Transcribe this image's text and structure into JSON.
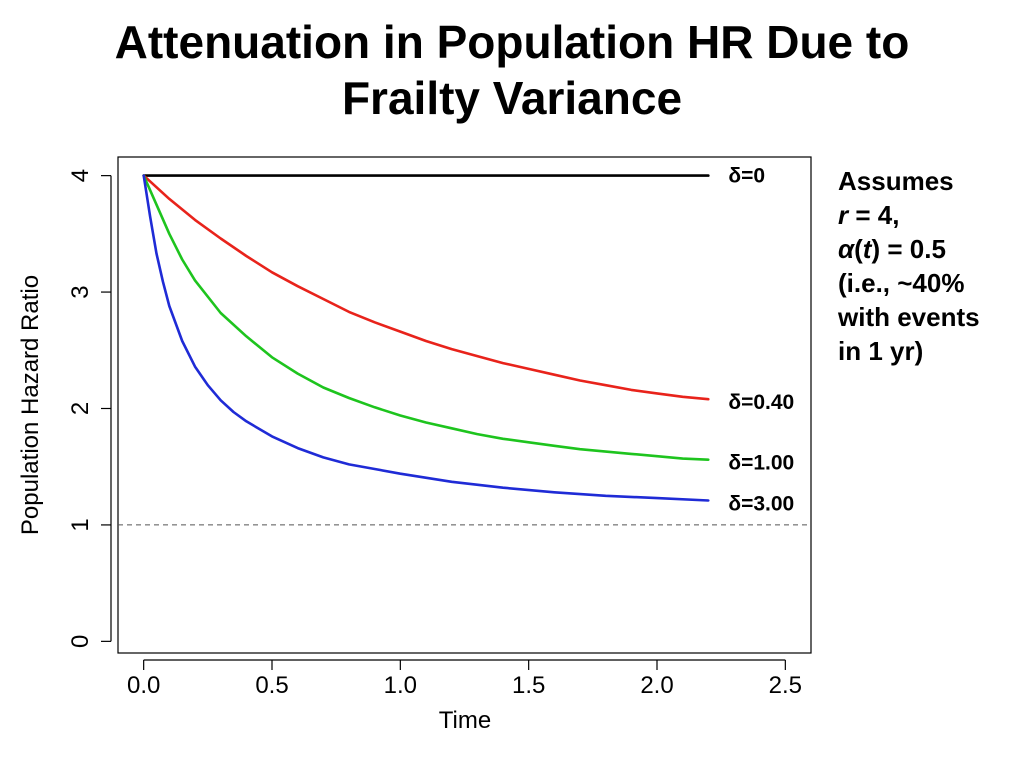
{
  "slide": {
    "title_line1": "Attenuation in Population HR Due to",
    "title_line2": "Frailty Variance"
  },
  "note": {
    "line1": "Assumes",
    "line2_var": "r",
    "line2_rest": " = 4,",
    "line3_func": "α",
    "line3_open": "(",
    "line3_arg": "t",
    "line3_rest": ") = 0.5",
    "line4": "(i.e., ~40%",
    "line5": "with events",
    "line6": "in 1 yr)"
  },
  "chart_data": {
    "type": "line",
    "title": "",
    "xlabel": "Time",
    "ylabel": "Population Hazard Ratio",
    "xlim": [
      -0.1,
      2.6
    ],
    "ylim": [
      -0.1,
      4.16
    ],
    "xticks": [
      0.0,
      0.5,
      1.0,
      1.5,
      2.0,
      2.5
    ],
    "xtick_labels": [
      "0.0",
      "0.5",
      "1.0",
      "1.5",
      "2.0",
      "2.5"
    ],
    "yticks": [
      0,
      1,
      2,
      3,
      4
    ],
    "ytick_labels": [
      "0",
      "1",
      "2",
      "3",
      "4"
    ],
    "reference_line": {
      "y": 1,
      "style": "dashed",
      "color": "#555555"
    },
    "series": [
      {
        "name": "δ=0",
        "color": "#000000",
        "x": [
          0,
          2.2
        ],
        "y": [
          4.0,
          4.0
        ]
      },
      {
        "name": "δ=0.40",
        "color": "#e8231b",
        "x": [
          0,
          0.1,
          0.2,
          0.3,
          0.4,
          0.5,
          0.6,
          0.7,
          0.8,
          0.9,
          1.0,
          1.1,
          1.2,
          1.3,
          1.4,
          1.5,
          1.6,
          1.7,
          1.8,
          1.9,
          2.0,
          2.1,
          2.2
        ],
        "y": [
          4.0,
          3.8,
          3.62,
          3.46,
          3.31,
          3.17,
          3.05,
          2.94,
          2.83,
          2.74,
          2.66,
          2.58,
          2.51,
          2.45,
          2.39,
          2.34,
          2.29,
          2.24,
          2.2,
          2.16,
          2.13,
          2.1,
          2.08
        ]
      },
      {
        "name": "δ=1.00",
        "color": "#1ec41e",
        "x": [
          0,
          0.05,
          0.1,
          0.15,
          0.2,
          0.3,
          0.4,
          0.5,
          0.6,
          0.7,
          0.8,
          0.9,
          1.0,
          1.1,
          1.2,
          1.3,
          1.4,
          1.5,
          1.6,
          1.7,
          1.8,
          1.9,
          2.0,
          2.1,
          2.2
        ],
        "y": [
          4.0,
          3.75,
          3.5,
          3.28,
          3.1,
          2.82,
          2.62,
          2.44,
          2.3,
          2.18,
          2.09,
          2.01,
          1.94,
          1.88,
          1.83,
          1.78,
          1.74,
          1.71,
          1.68,
          1.65,
          1.63,
          1.61,
          1.59,
          1.57,
          1.56
        ]
      },
      {
        "name": "δ=3.00",
        "color": "#1f2bd6",
        "x": [
          0,
          0.025,
          0.05,
          0.075,
          0.1,
          0.15,
          0.2,
          0.25,
          0.3,
          0.35,
          0.4,
          0.5,
          0.6,
          0.7,
          0.8,
          0.9,
          1.0,
          1.2,
          1.4,
          1.6,
          1.8,
          2.0,
          2.2
        ],
        "y": [
          4.0,
          3.65,
          3.33,
          3.09,
          2.88,
          2.58,
          2.36,
          2.2,
          2.07,
          1.97,
          1.89,
          1.76,
          1.66,
          1.58,
          1.52,
          1.48,
          1.44,
          1.37,
          1.32,
          1.28,
          1.25,
          1.23,
          1.21
        ]
      }
    ]
  }
}
